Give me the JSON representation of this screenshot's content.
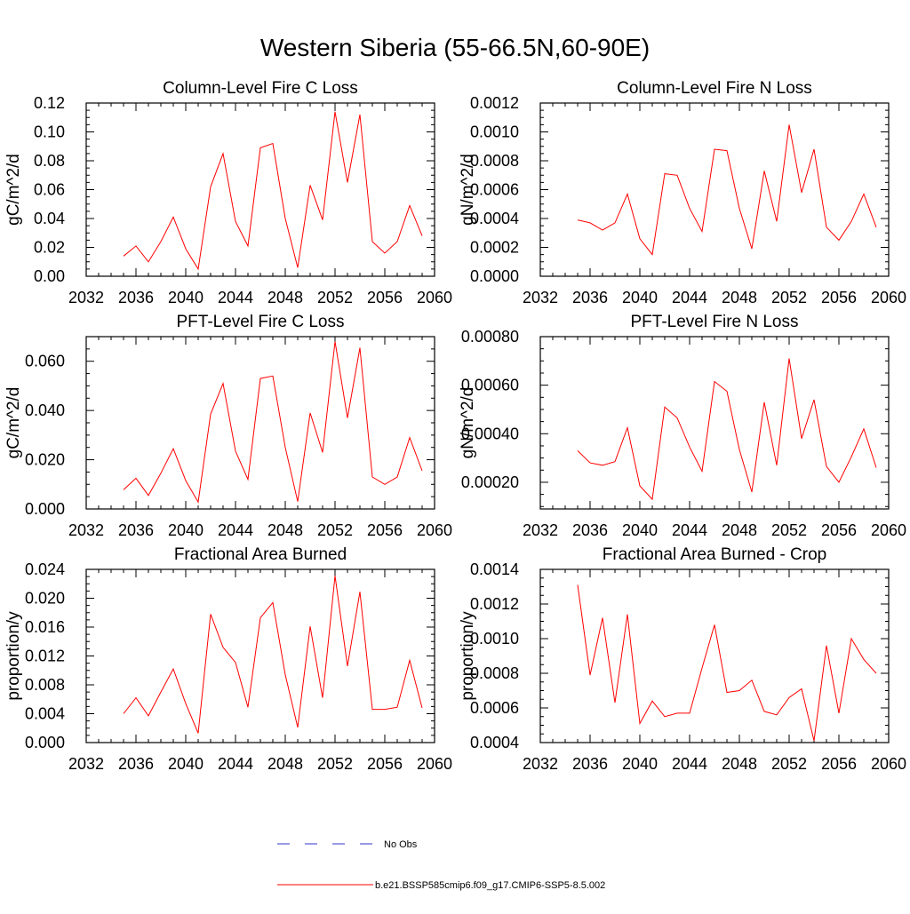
{
  "title": "Western Siberia (55-66.5N,60-90E)",
  "colors": {
    "model_line": "#ff0000",
    "obs_line": "#3333cc",
    "axis": "#000000"
  },
  "legend": {
    "obs_label": "No Obs",
    "model_label": "b.e21.BSSP585cmip6.f09_g17.CMIP6-SSP5-8.5.002"
  },
  "chart_data": [
    {
      "type": "line",
      "title": "Column-Level Fire C Loss",
      "ylabel": "gC/m^2/d",
      "xlim": [
        2032,
        2060
      ],
      "ylim": [
        0,
        0.12
      ],
      "xticks": [
        2032,
        2036,
        2040,
        2044,
        2048,
        2052,
        2056,
        2060
      ],
      "yticks": [
        0,
        0.02,
        0.04,
        0.06,
        0.08,
        0.1,
        0.12
      ],
      "yticklabels": [
        "0.00",
        "0.02",
        "0.04",
        "0.06",
        "0.08",
        "0.10",
        "0.12"
      ],
      "x": [
        2035,
        2036,
        2037,
        2038,
        2039,
        2040,
        2041,
        2042,
        2043,
        2044,
        2045,
        2046,
        2047,
        2048,
        2049,
        2050,
        2051,
        2052,
        2053,
        2054,
        2055,
        2056,
        2057,
        2058,
        2059
      ],
      "series": [
        {
          "values": [
            0.014,
            0.021,
            0.01,
            0.024,
            0.041,
            0.019,
            0.005,
            0.062,
            0.085,
            0.038,
            0.021,
            0.089,
            0.092,
            0.04,
            0.006,
            0.063,
            0.039,
            0.114,
            0.065,
            0.112,
            0.024,
            0.016,
            0.024,
            0.049,
            0.028
          ]
        }
      ]
    },
    {
      "type": "line",
      "title": "Column-Level Fire N Loss",
      "ylabel": "gN/m^2/d",
      "xlim": [
        2032,
        2060
      ],
      "ylim": [
        0,
        0.0012
      ],
      "xticks": [
        2032,
        2036,
        2040,
        2044,
        2048,
        2052,
        2056,
        2060
      ],
      "yticks": [
        0,
        0.0002,
        0.0004,
        0.0006,
        0.0008,
        0.001,
        0.0012
      ],
      "yticklabels": [
        "0.0000",
        "0.0002",
        "0.0004",
        "0.0006",
        "0.0008",
        "0.0010",
        "0.0012"
      ],
      "x": [
        2035,
        2036,
        2037,
        2038,
        2039,
        2040,
        2041,
        2042,
        2043,
        2044,
        2045,
        2046,
        2047,
        2048,
        2049,
        2050,
        2051,
        2052,
        2053,
        2054,
        2055,
        2056,
        2057,
        2058,
        2059
      ],
      "series": [
        {
          "values": [
            0.00039,
            0.00037,
            0.00032,
            0.00037,
            0.00057,
            0.00026,
            0.00015,
            0.00071,
            0.0007,
            0.00047,
            0.00031,
            0.00088,
            0.00087,
            0.00047,
            0.00019,
            0.00073,
            0.00038,
            0.00105,
            0.00058,
            0.00088,
            0.00034,
            0.00025,
            0.00038,
            0.00057,
            0.00034
          ]
        }
      ]
    },
    {
      "type": "line",
      "title": "PFT-Level Fire C Loss",
      "ylabel": "gC/m^2/d",
      "xlim": [
        2032,
        2060
      ],
      "ylim": [
        0,
        0.07
      ],
      "xticks": [
        2032,
        2036,
        2040,
        2044,
        2048,
        2052,
        2056,
        2060
      ],
      "yticks": [
        0,
        0.02,
        0.04,
        0.06
      ],
      "yticklabels": [
        "0.000",
        "0.020",
        "0.040",
        "0.060"
      ],
      "x": [
        2035,
        2036,
        2037,
        2038,
        2039,
        2040,
        2041,
        2042,
        2043,
        2044,
        2045,
        2046,
        2047,
        2048,
        2049,
        2050,
        2051,
        2052,
        2053,
        2054,
        2055,
        2056,
        2057,
        2058,
        2059
      ],
      "series": [
        {
          "values": [
            0.0078,
            0.0125,
            0.0055,
            0.0145,
            0.0245,
            0.0115,
            0.0028,
            0.0385,
            0.051,
            0.0235,
            0.012,
            0.053,
            0.054,
            0.025,
            0.003,
            0.039,
            0.023,
            0.068,
            0.037,
            0.0655,
            0.013,
            0.01,
            0.013,
            0.029,
            0.0155
          ]
        }
      ]
    },
    {
      "type": "line",
      "title": "PFT-Level Fire N Loss",
      "ylabel": "gN/m^2/d",
      "xlim": [
        2032,
        2060
      ],
      "ylim": [
        9e-05,
        0.0008
      ],
      "xticks": [
        2032,
        2036,
        2040,
        2044,
        2048,
        2052,
        2056,
        2060
      ],
      "yticks": [
        0.0002,
        0.0004,
        0.0006,
        0.0008
      ],
      "yticklabels": [
        "0.00020",
        "0.00040",
        "0.00060",
        "0.00080"
      ],
      "x": [
        2035,
        2036,
        2037,
        2038,
        2039,
        2040,
        2041,
        2042,
        2043,
        2044,
        2045,
        2046,
        2047,
        2048,
        2049,
        2050,
        2051,
        2052,
        2053,
        2054,
        2055,
        2056,
        2057,
        2058,
        2059
      ],
      "series": [
        {
          "values": [
            0.00033,
            0.00028,
            0.00027,
            0.000285,
            0.000425,
            0.000185,
            0.00013,
            0.00051,
            0.000465,
            0.000345,
            0.000245,
            0.000615,
            0.000575,
            0.000335,
            0.00016,
            0.00053,
            0.00027,
            0.00071,
            0.00038,
            0.00054,
            0.000265,
            0.0002,
            0.000305,
            0.00042,
            0.00026
          ]
        }
      ]
    },
    {
      "type": "line",
      "title": "Fractional Area Burned",
      "ylabel": "proportion/y",
      "xlim": [
        2032,
        2060
      ],
      "ylim": [
        0,
        0.024
      ],
      "xticks": [
        2032,
        2036,
        2040,
        2044,
        2048,
        2052,
        2056,
        2060
      ],
      "yticks": [
        0,
        0.004,
        0.008,
        0.012,
        0.016,
        0.02,
        0.024
      ],
      "yticklabels": [
        "0.000",
        "0.004",
        "0.008",
        "0.012",
        "0.016",
        "0.020",
        "0.024"
      ],
      "x": [
        2035,
        2036,
        2037,
        2038,
        2039,
        2040,
        2041,
        2042,
        2043,
        2044,
        2045,
        2046,
        2047,
        2048,
        2049,
        2050,
        2051,
        2052,
        2053,
        2054,
        2055,
        2056,
        2057,
        2058,
        2059
      ],
      "series": [
        {
          "values": [
            0.004,
            0.0062,
            0.0037,
            0.007,
            0.0102,
            0.0054,
            0.0013,
            0.0178,
            0.0132,
            0.0111,
            0.0049,
            0.0173,
            0.0194,
            0.0094,
            0.0021,
            0.0161,
            0.0062,
            0.0231,
            0.0106,
            0.0209,
            0.0046,
            0.0046,
            0.0049,
            0.0114,
            0.0048
          ]
        }
      ]
    },
    {
      "type": "line",
      "title": "Fractional Area Burned - Crop",
      "ylabel": "proportion/y",
      "xlim": [
        2032,
        2060
      ],
      "ylim": [
        0.0004,
        0.0014
      ],
      "xticks": [
        2032,
        2036,
        2040,
        2044,
        2048,
        2052,
        2056,
        2060
      ],
      "yticks": [
        0.0004,
        0.0006,
        0.0008,
        0.001,
        0.0012,
        0.0014
      ],
      "yticklabels": [
        "0.0004",
        "0.0006",
        "0.0008",
        "0.0010",
        "0.0012",
        "0.0014"
      ],
      "x": [
        2035,
        2036,
        2037,
        2038,
        2039,
        2040,
        2041,
        2042,
        2043,
        2044,
        2045,
        2046,
        2047,
        2048,
        2049,
        2050,
        2051,
        2052,
        2053,
        2054,
        2055,
        2056,
        2057,
        2058,
        2059
      ],
      "series": [
        {
          "values": [
            0.00131,
            0.00079,
            0.00112,
            0.00063,
            0.00114,
            0.00051,
            0.00064,
            0.00055,
            0.00057,
            0.00057,
            0.00083,
            0.00108,
            0.00069,
            0.0007,
            0.00076,
            0.00058,
            0.00056,
            0.00066,
            0.00071,
            0.00041,
            0.00096,
            0.00057,
            0.001,
            0.00088,
            0.0008
          ]
        }
      ]
    }
  ]
}
